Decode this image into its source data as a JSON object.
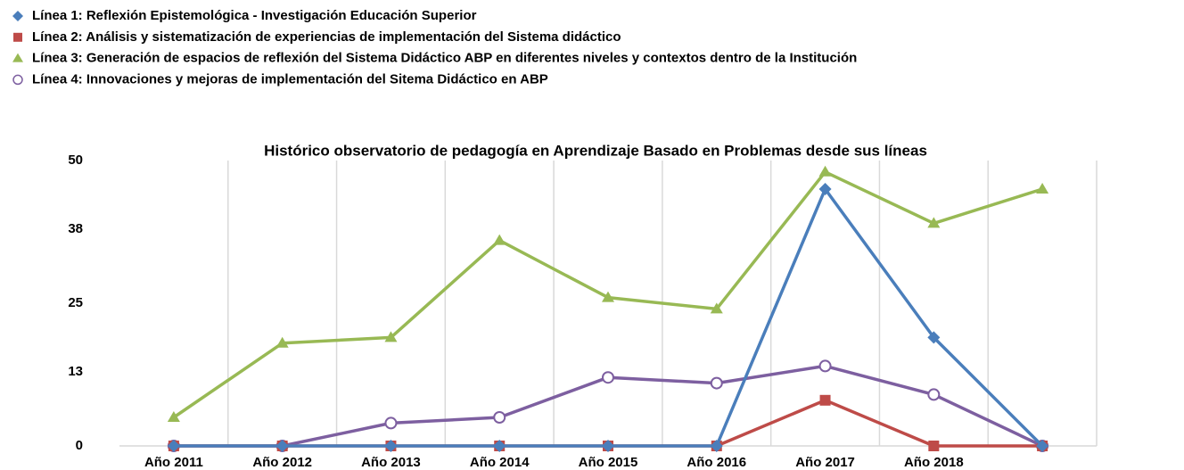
{
  "chart_data": {
    "type": "line",
    "title": "Histórico observatorio de pedagogía en Aprendizaje Basado en Problemas desde sus líneas",
    "categories": [
      "Año 2011",
      "Año 2012",
      "Año 2013",
      "Año 2014",
      "Año 2015",
      "Año 2016",
      "Año 2017",
      "Año 2018",
      null
    ],
    "series": [
      {
        "name": "Línea 1: Reflexión Epistemológica - Investigación Educación Superior",
        "color": "#4a7ebb",
        "marker": "diamond",
        "values": [
          0,
          0,
          0,
          0,
          0,
          0,
          45,
          19,
          0
        ]
      },
      {
        "name": "Línea 2: Análisis y sistematización de experiencias de implementación del Sistema didáctico",
        "color": "#be4b48",
        "marker": "square",
        "values": [
          0,
          0,
          0,
          0,
          0,
          0,
          8,
          0,
          0
        ]
      },
      {
        "name": "Línea 3: Generación de espacios de reflexión del Sistema Didáctico ABP en diferentes niveles y contextos dentro de la Institución",
        "color": "#98b954",
        "marker": "triangle",
        "values": [
          5,
          18,
          19,
          36,
          26,
          24,
          48,
          39,
          45
        ]
      },
      {
        "name": "Línea 4: Innovaciones y mejoras de implementación del Sitema Didáctico en ABP",
        "color": "#7d5fa0",
        "marker": "circle",
        "values": [
          0,
          0,
          4,
          5,
          12,
          11,
          14,
          9,
          0
        ]
      }
    ],
    "ylim": [
      0,
      50
    ],
    "yticks": [
      0,
      13,
      25,
      38,
      50
    ],
    "legend": "top-left",
    "grid": false
  }
}
